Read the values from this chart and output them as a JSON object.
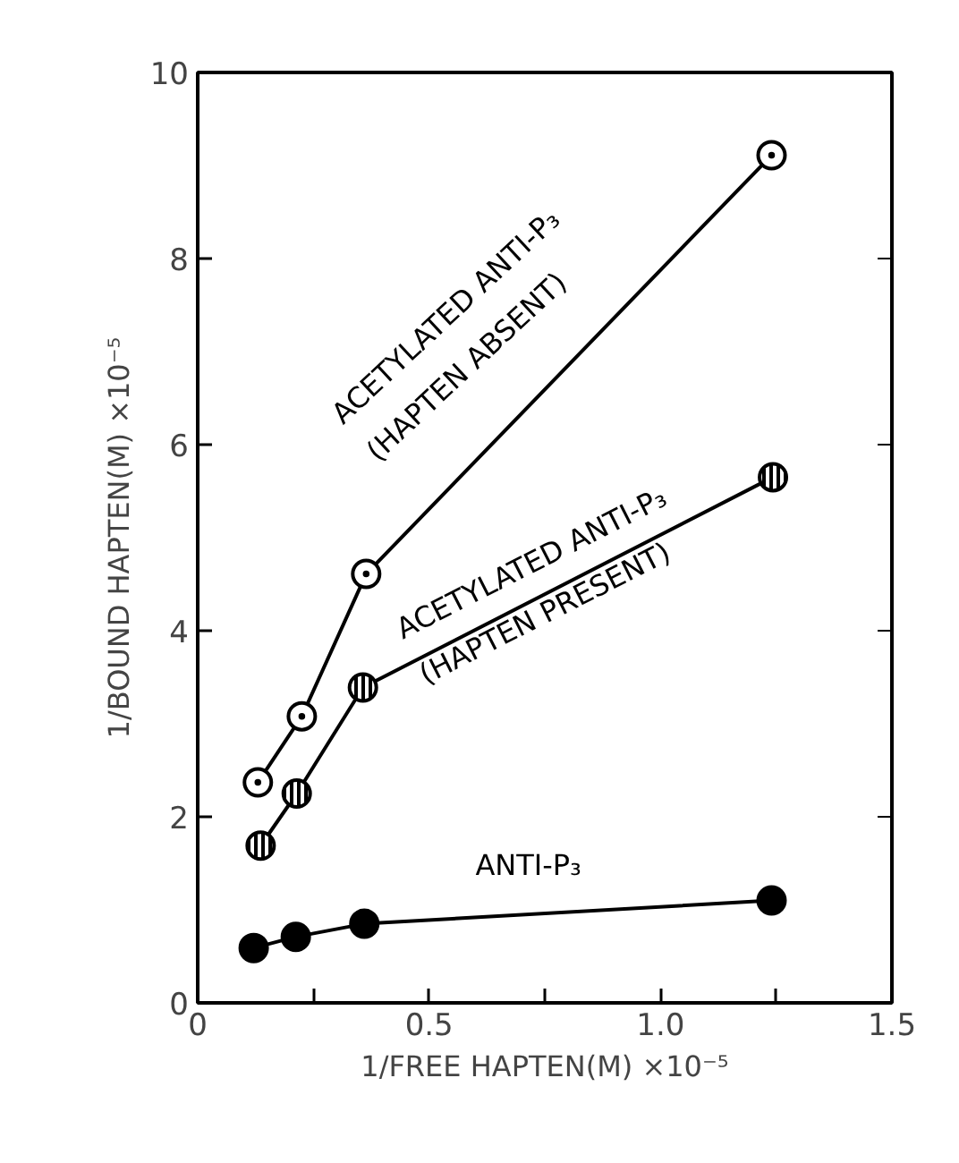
{
  "chart_data": {
    "type": "line",
    "xlabel": "1/FREE HAPTEN(M) ×10⁻⁵",
    "ylabel": "1/BOUND HAPTEN(M) ×10⁻⁵",
    "xlim": [
      0,
      1.5
    ],
    "ylim": [
      0,
      10
    ],
    "xticks": [
      0,
      {
        "value": 0.25,
        "label": null
      },
      {
        "value": 0.5,
        "label": "0.5"
      },
      {
        "value": 0.75,
        "label": null
      },
      {
        "value": 1.0,
        "label": "1.0"
      },
      {
        "value": 1.25,
        "label": null
      },
      {
        "value": 1.5,
        "label": "1.5"
      }
    ],
    "yticks": [
      0,
      2,
      4,
      6,
      8,
      10
    ],
    "grid": false,
    "marker": "circle",
    "line_style": "solid",
    "series": [
      {
        "name": "ACETYLATED ANTI-P₃\n(HAPTEN ABSENT)",
        "color": "#000000",
        "x": [
          0.13,
          0.225,
          0.364,
          1.24
        ],
        "values": [
          2.37,
          3.08,
          4.61,
          9.11
        ]
      },
      {
        "name": "ACETYLATED ANTI-P₃\n(HAPTEN PRESENT)",
        "color": "#000000",
        "x": [
          0.136,
          0.214,
          0.357,
          1.243
        ],
        "values": [
          1.69,
          2.25,
          3.39,
          5.65
        ]
      },
      {
        "name": "ANTI-P₃",
        "color": "#000000",
        "x": [
          0.121,
          0.212,
          0.36,
          1.24
        ],
        "values": [
          0.59,
          0.71,
          0.85,
          1.1
        ]
      }
    ]
  }
}
